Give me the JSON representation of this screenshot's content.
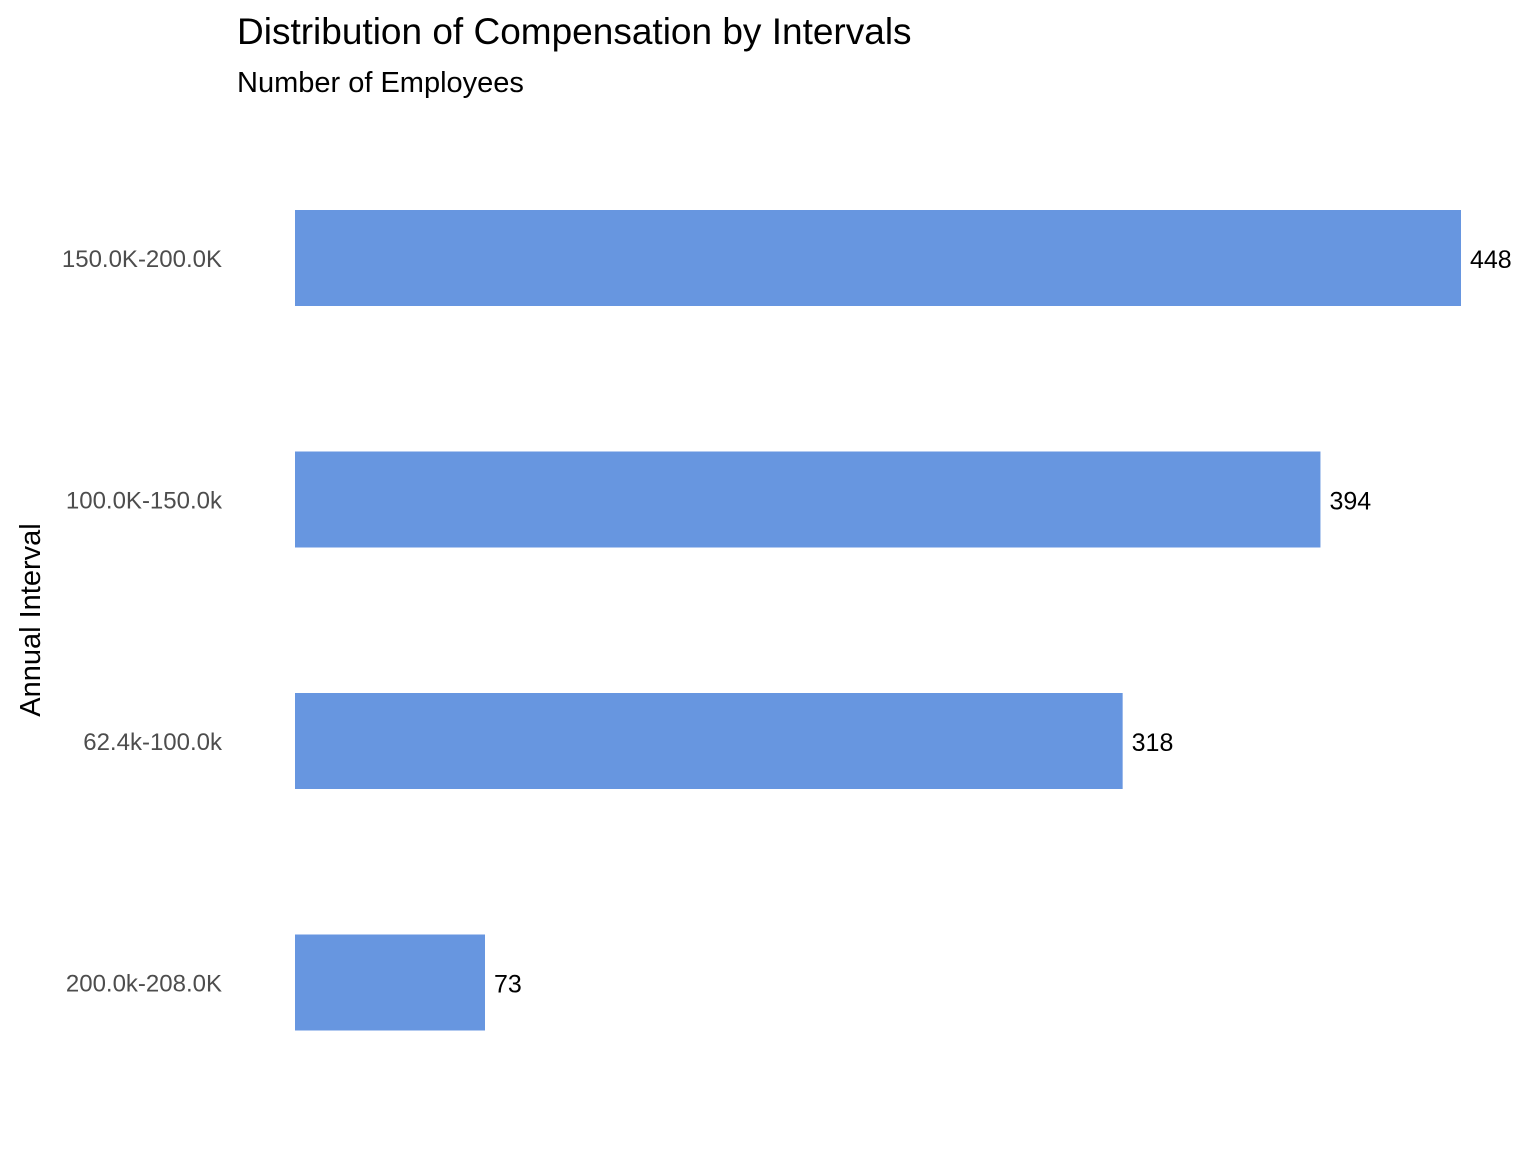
{
  "chart_data": {
    "type": "bar",
    "orientation": "horizontal",
    "title": "Distribution of Compensation by Intervals",
    "subtitle": "Number of Employees",
    "xlabel": "",
    "ylabel": "Annual Interval",
    "categories": [
      "150.0K-200.0K",
      "100.0K-150.0k",
      "62.4k-100.0k",
      "200.0k-208.0K"
    ],
    "values": [
      448,
      394,
      318,
      73
    ],
    "data_labels": [
      "448",
      "394",
      "318",
      "73"
    ],
    "xlim": [
      0,
      448
    ],
    "grid": false,
    "legend": "none",
    "bar_color": "#6796E0"
  }
}
